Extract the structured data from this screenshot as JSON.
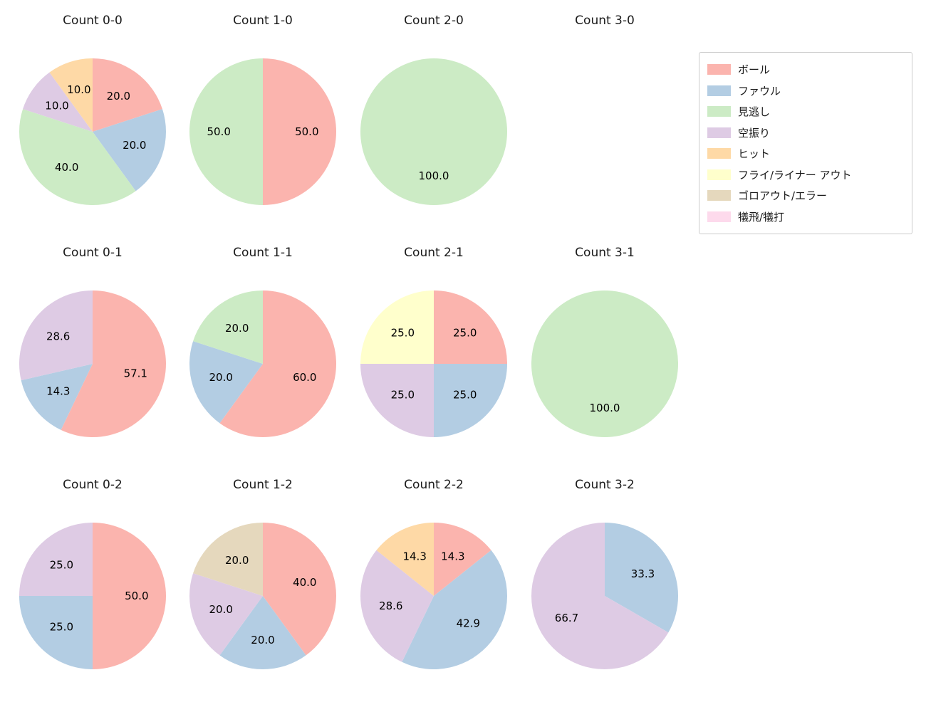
{
  "figure": {
    "background": "#ffffff"
  },
  "legend": {
    "position": "top-right",
    "items": [
      {
        "label": "ボール",
        "color": "#fbb4ae"
      },
      {
        "label": "ファウル",
        "color": "#b3cde3"
      },
      {
        "label": "見逃し",
        "color": "#ccebc5"
      },
      {
        "label": "空振り",
        "color": "#decbe4"
      },
      {
        "label": "ヒット",
        "color": "#fed9a6"
      },
      {
        "label": "フライ/ライナー アウト",
        "color": "#ffffcc"
      },
      {
        "label": "ゴロアウト/エラー",
        "color": "#e5d8bd"
      },
      {
        "label": "犠飛/犠打",
        "color": "#fddaec"
      }
    ]
  },
  "chart_data": [
    {
      "type": "pie",
      "title": "Count 0-0",
      "start_angle_deg": 0,
      "direction": "clockwise-from-top",
      "slices": [
        {
          "label": "ボール",
          "value": 20.0,
          "color": "#fbb4ae"
        },
        {
          "label": "ファウル",
          "value": 20.0,
          "color": "#b3cde3"
        },
        {
          "label": "見逃し",
          "value": 40.0,
          "color": "#ccebc5"
        },
        {
          "label": "空振り",
          "value": 10.0,
          "color": "#decbe4"
        },
        {
          "label": "ヒット",
          "value": 10.0,
          "color": "#fed9a6"
        }
      ]
    },
    {
      "type": "pie",
      "title": "Count 1-0",
      "start_angle_deg": 0,
      "direction": "clockwise-from-top",
      "slices": [
        {
          "label": "ボール",
          "value": 50.0,
          "color": "#fbb4ae"
        },
        {
          "label": "見逃し",
          "value": 50.0,
          "color": "#ccebc5"
        }
      ]
    },
    {
      "type": "pie",
      "title": "Count 2-0",
      "start_angle_deg": 0,
      "direction": "clockwise-from-top",
      "slices": [
        {
          "label": "見逃し",
          "value": 100.0,
          "color": "#ccebc5"
        }
      ]
    },
    {
      "type": "pie",
      "title": "Count 3-0",
      "start_angle_deg": 0,
      "direction": "clockwise-from-top",
      "slices": []
    },
    {
      "type": "pie",
      "title": "Count 0-1",
      "start_angle_deg": 0,
      "direction": "clockwise-from-top",
      "slices": [
        {
          "label": "ボール",
          "value": 57.1,
          "color": "#fbb4ae"
        },
        {
          "label": "ファウル",
          "value": 14.3,
          "color": "#b3cde3"
        },
        {
          "label": "空振り",
          "value": 28.6,
          "color": "#decbe4"
        }
      ]
    },
    {
      "type": "pie",
      "title": "Count 1-1",
      "start_angle_deg": 0,
      "direction": "clockwise-from-top",
      "slices": [
        {
          "label": "ボール",
          "value": 60.0,
          "color": "#fbb4ae"
        },
        {
          "label": "ファウル",
          "value": 20.0,
          "color": "#b3cde3"
        },
        {
          "label": "見逃し",
          "value": 20.0,
          "color": "#ccebc5"
        }
      ]
    },
    {
      "type": "pie",
      "title": "Count 2-1",
      "start_angle_deg": 0,
      "direction": "clockwise-from-top",
      "slices": [
        {
          "label": "ボール",
          "value": 25.0,
          "color": "#fbb4ae"
        },
        {
          "label": "ファウル",
          "value": 25.0,
          "color": "#b3cde3"
        },
        {
          "label": "空振り",
          "value": 25.0,
          "color": "#decbe4"
        },
        {
          "label": "フライ/ライナー アウト",
          "value": 25.0,
          "color": "#ffffcc"
        }
      ]
    },
    {
      "type": "pie",
      "title": "Count 3-1",
      "start_angle_deg": 0,
      "direction": "clockwise-from-top",
      "slices": [
        {
          "label": "見逃し",
          "value": 100.0,
          "color": "#ccebc5"
        }
      ]
    },
    {
      "type": "pie",
      "title": "Count 0-2",
      "start_angle_deg": 0,
      "direction": "clockwise-from-top",
      "slices": [
        {
          "label": "ボール",
          "value": 50.0,
          "color": "#fbb4ae"
        },
        {
          "label": "ファウル",
          "value": 25.0,
          "color": "#b3cde3"
        },
        {
          "label": "空振り",
          "value": 25.0,
          "color": "#decbe4"
        }
      ]
    },
    {
      "type": "pie",
      "title": "Count 1-2",
      "start_angle_deg": 0,
      "direction": "clockwise-from-top",
      "slices": [
        {
          "label": "ボール",
          "value": 40.0,
          "color": "#fbb4ae"
        },
        {
          "label": "ファウル",
          "value": 20.0,
          "color": "#b3cde3"
        },
        {
          "label": "空振り",
          "value": 20.0,
          "color": "#decbe4"
        },
        {
          "label": "ゴロアウト/エラー",
          "value": 20.0,
          "color": "#e5d8bd"
        }
      ]
    },
    {
      "type": "pie",
      "title": "Count 2-2",
      "start_angle_deg": 0,
      "direction": "clockwise-from-top",
      "slices": [
        {
          "label": "ボール",
          "value": 14.3,
          "color": "#fbb4ae"
        },
        {
          "label": "ファウル",
          "value": 42.9,
          "color": "#b3cde3"
        },
        {
          "label": "空振り",
          "value": 28.6,
          "color": "#decbe4"
        },
        {
          "label": "ヒット",
          "value": 14.3,
          "color": "#fed9a6"
        }
      ]
    },
    {
      "type": "pie",
      "title": "Count 3-2",
      "start_angle_deg": 0,
      "direction": "clockwise-from-top",
      "slices": [
        {
          "label": "ファウル",
          "value": 33.3,
          "color": "#b3cde3"
        },
        {
          "label": "空振り",
          "value": 66.7,
          "color": "#decbe4"
        }
      ]
    }
  ]
}
